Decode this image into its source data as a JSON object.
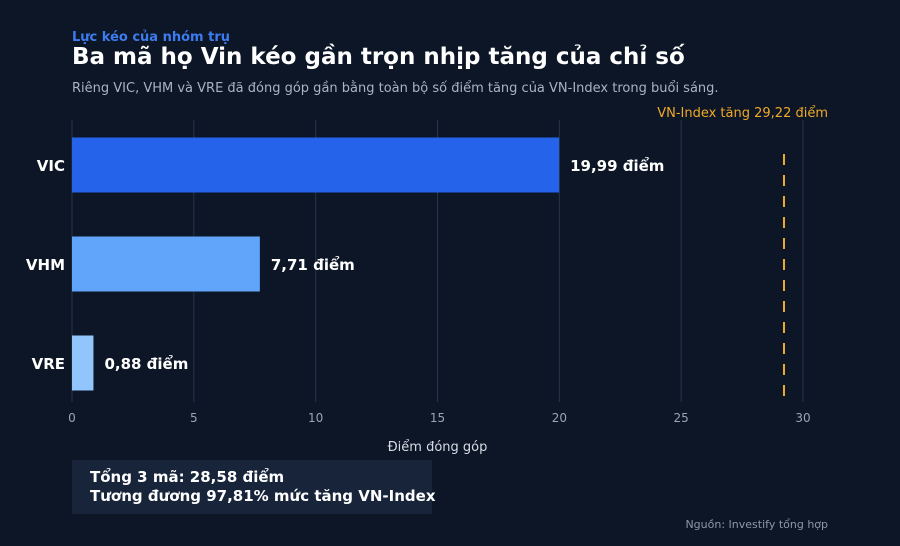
{
  "kicker": "Lực kéo của nhóm trụ",
  "title": "Ba mã họ Vin kéo gần trọn nhịp tăng của chỉ số",
  "subtitle": "Riêng VIC, VHM và VRE đã đóng góp gần bằng toàn bộ số điểm tăng của VN-Index trong buổi sáng.",
  "summary": {
    "line1": "Tổng 3 mã: 28,58 điểm",
    "line2": "Tương đương 97,81% mức tăng VN-Index"
  },
  "source": "Nguồn: Investify tổng hợp",
  "colors": {
    "background": "#0c1626",
    "grid": "#27354a",
    "tick_text": "#9aa4b3",
    "reference": "#f0a928"
  },
  "chart_data": {
    "type": "bar",
    "orientation": "horizontal",
    "categories": [
      "VIC",
      "VHM",
      "VRE"
    ],
    "values": [
      19.99,
      7.71,
      0.88
    ],
    "data_labels": [
      "19,99 điểm",
      "7,71 điểm",
      "0,88 điểm"
    ],
    "bar_colors": [
      "#2563eb",
      "#60a5fa",
      "#93c5fd"
    ],
    "xlabel": "Điểm đóng góp",
    "ylabel": "",
    "xlim": [
      0,
      30
    ],
    "xticks": [
      0,
      5,
      10,
      15,
      20,
      25,
      30
    ],
    "grid": true,
    "reference_line": {
      "value": 29.22,
      "label": "VN-Index tăng 29,22 điểm",
      "style": "dashed"
    }
  }
}
